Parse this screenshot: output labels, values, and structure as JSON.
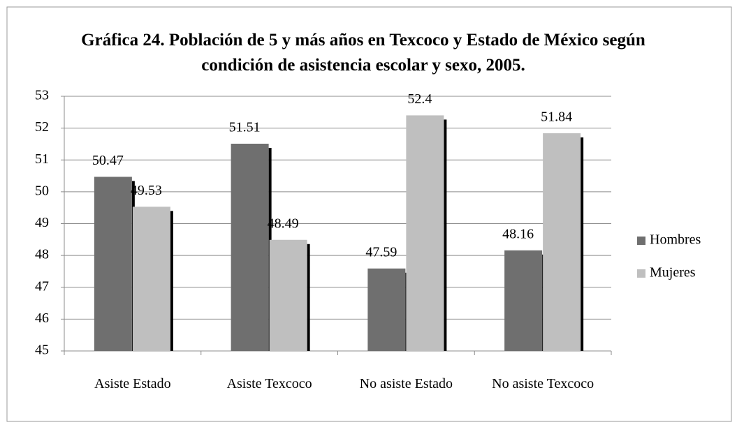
{
  "chart_data": {
    "type": "bar",
    "title": "Gráfica 24. Población de 5 y más años en Texcoco y Estado de México según condición de asistencia escolar y sexo, 2005.",
    "categories": [
      "Asiste Estado",
      "Asiste Texcoco",
      "No asiste Estado",
      "No asiste Texcoco"
    ],
    "series": [
      {
        "name": "Hombres",
        "color": "#6f6f6f",
        "values": [
          50.47,
          51.51,
          47.59,
          48.16
        ]
      },
      {
        "name": "Mujeres",
        "color": "#bfbfbf",
        "values": [
          49.53,
          48.49,
          52.4,
          51.84
        ]
      }
    ],
    "ylim": [
      45,
      53
    ],
    "yticks": [
      45,
      46,
      47,
      48,
      49,
      50,
      51,
      52,
      53
    ],
    "grid": true,
    "legend": "right"
  }
}
